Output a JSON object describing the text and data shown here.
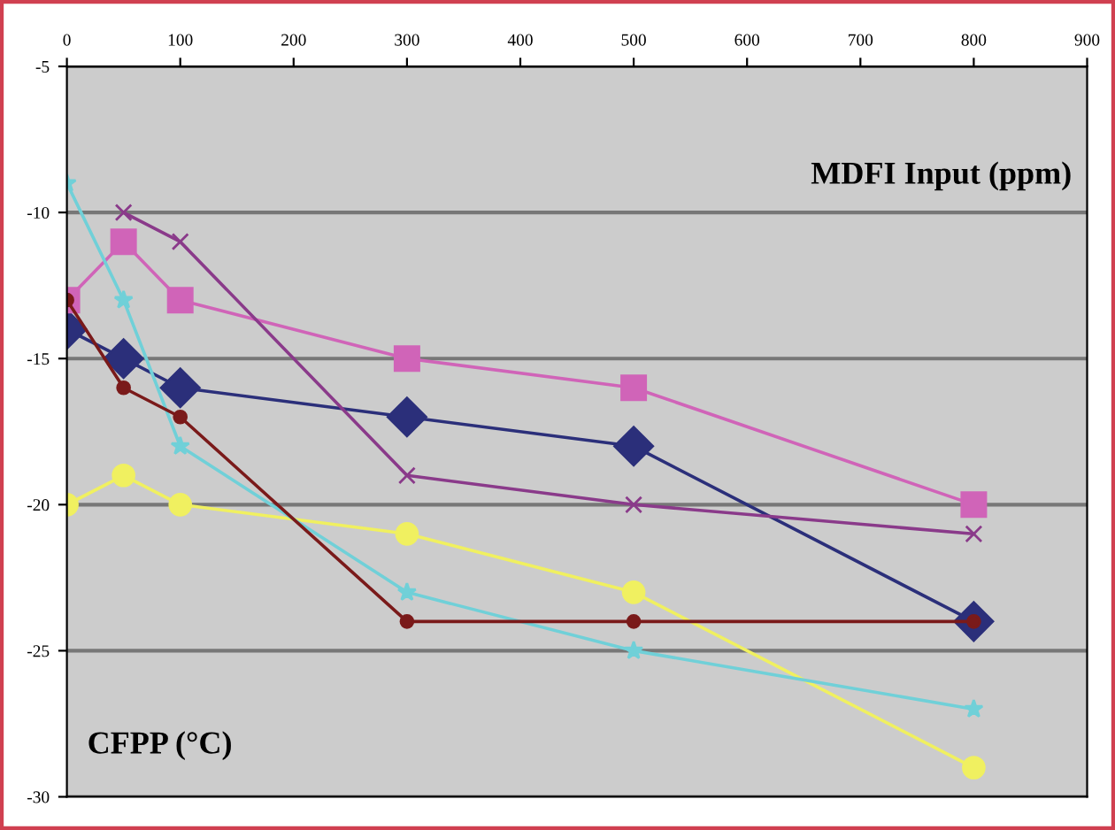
{
  "chart_data": {
    "type": "line",
    "xlabel": "MDFI Input (ppm)",
    "ylabel": "CFPP (°C)",
    "xlim": [
      0,
      900
    ],
    "xticks": [
      0,
      100,
      200,
      300,
      400,
      500,
      600,
      700,
      800,
      900
    ],
    "ylim": [
      -30,
      -5
    ],
    "yticks": [
      -5,
      -10,
      -15,
      -20,
      -25,
      -30
    ],
    "grid": "y",
    "legend": false,
    "series": [
      {
        "color": "#2b2f7a",
        "marker": "diamond",
        "x": [
          0,
          50,
          100,
          300,
          500,
          800
        ],
        "values": [
          -14,
          -15,
          -16,
          -17,
          -18,
          -24
        ]
      },
      {
        "color": "#d064b8",
        "marker": "square",
        "x": [
          0,
          50,
          100,
          300,
          500,
          800
        ],
        "values": [
          -13,
          -11,
          -13,
          -15,
          -16,
          -20
        ]
      },
      {
        "color": "#f0f060",
        "marker": "circle",
        "x": [
          0,
          50,
          100,
          300,
          500,
          800
        ],
        "values": [
          -20,
          -19,
          -20,
          -21,
          -23,
          -29
        ]
      },
      {
        "color": "#70d0d8",
        "marker": "star",
        "x": [
          0,
          50,
          100,
          300,
          500,
          800
        ],
        "values": [
          -9,
          -13,
          -18,
          -23,
          -25,
          -27
        ]
      },
      {
        "color": "#8a3a8a",
        "marker": "cross",
        "x": [
          50,
          100,
          300,
          500,
          800
        ],
        "values": [
          -10,
          -11,
          -19,
          -20,
          -21
        ]
      },
      {
        "color": "#7a1a1a",
        "marker": "circle",
        "x": [
          0,
          50,
          100,
          300,
          500,
          800
        ],
        "values": [
          -13,
          -16,
          -17,
          -24,
          -24,
          -24
        ]
      }
    ]
  }
}
